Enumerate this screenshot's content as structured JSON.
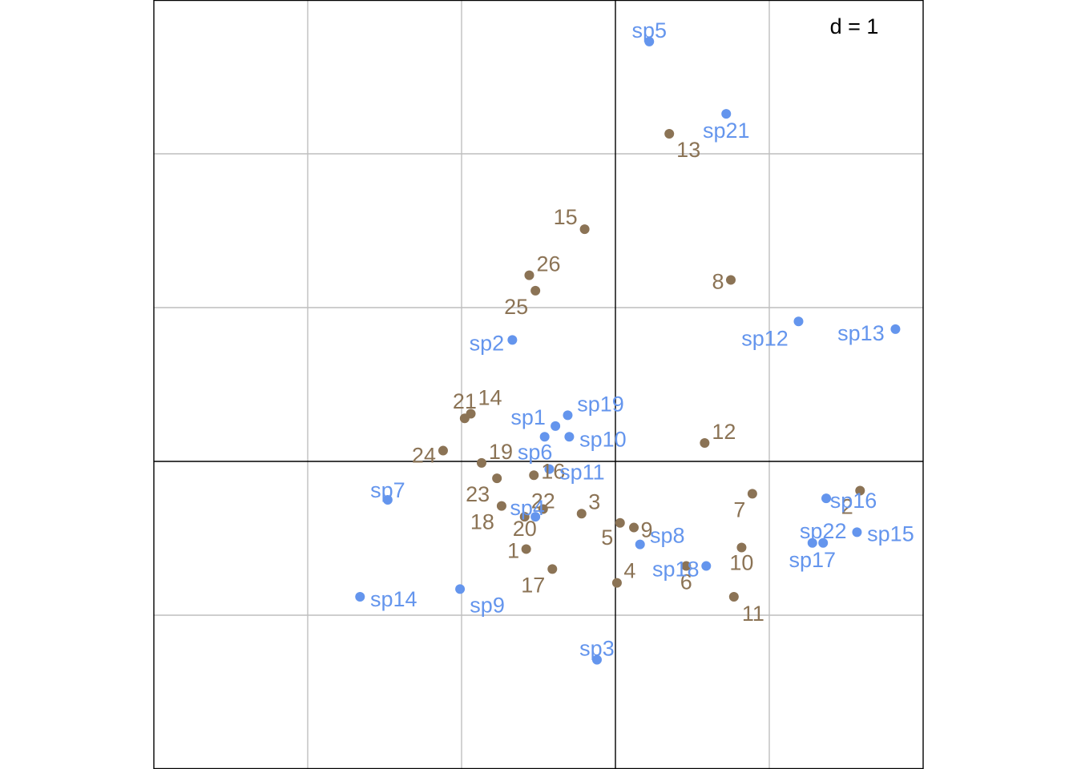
{
  "chart_data": {
    "type": "scatter",
    "scale_label": "d = 1",
    "grid": true,
    "xlim": [
      -3,
      2
    ],
    "ylim": [
      -2,
      3
    ],
    "colors": {
      "species": "#6495ED",
      "sites": "#8B7355",
      "grid": "#BEBEBE",
      "axes": "#000000"
    },
    "series": [
      {
        "name": "species",
        "points": [
          {
            "label": "sp1",
            "x": -0.39,
            "y": 0.23
          },
          {
            "label": "sp2",
            "x": -0.67,
            "y": 0.79
          },
          {
            "label": "sp3",
            "x": -0.12,
            "y": -1.29
          },
          {
            "label": "sp4",
            "x": -0.52,
            "y": -0.36
          },
          {
            "label": "sp5",
            "x": 0.22,
            "y": 2.73
          },
          {
            "label": "sp6",
            "x": -0.46,
            "y": 0.16
          },
          {
            "label": "sp7",
            "x": -1.48,
            "y": -0.25
          },
          {
            "label": "sp8",
            "x": 0.16,
            "y": -0.54
          },
          {
            "label": "sp9",
            "x": -1.01,
            "y": -0.83
          },
          {
            "label": "sp10",
            "x": -0.3,
            "y": 0.16
          },
          {
            "label": "sp11",
            "x": -0.43,
            "y": -0.05
          },
          {
            "label": "sp12",
            "x": 1.19,
            "y": 0.91
          },
          {
            "label": "sp13",
            "x": 1.82,
            "y": 0.86
          },
          {
            "label": "sp14",
            "x": -1.66,
            "y": -0.88
          },
          {
            "label": "sp15",
            "x": 1.57,
            "y": -0.46
          },
          {
            "label": "sp16",
            "x": 1.37,
            "y": -0.24
          },
          {
            "label": "sp17",
            "x": 1.28,
            "y": -0.53
          },
          {
            "label": "sp18",
            "x": 0.59,
            "y": -0.68
          },
          {
            "label": "sp19",
            "x": -0.31,
            "y": 0.3
          },
          {
            "label": "sp21",
            "x": 0.72,
            "y": 2.26
          },
          {
            "label": "sp22",
            "x": 1.35,
            "y": -0.53
          }
        ]
      },
      {
        "name": "sites",
        "points": [
          {
            "label": "1",
            "x": -0.58,
            "y": -0.57
          },
          {
            "label": "2",
            "x": 1.59,
            "y": -0.19
          },
          {
            "label": "3",
            "x": -0.22,
            "y": -0.34
          },
          {
            "label": "4",
            "x": 0.01,
            "y": -0.79
          },
          {
            "label": "5",
            "x": 0.03,
            "y": -0.4
          },
          {
            "label": "6",
            "x": 0.46,
            "y": -0.68
          },
          {
            "label": "7",
            "x": 0.89,
            "y": -0.21
          },
          {
            "label": "8",
            "x": 0.75,
            "y": 1.18
          },
          {
            "label": "9",
            "x": 0.12,
            "y": -0.43
          },
          {
            "label": "10",
            "x": 0.82,
            "y": -0.56
          },
          {
            "label": "11",
            "x": 0.77,
            "y": -0.88
          },
          {
            "label": "12",
            "x": 0.58,
            "y": 0.12
          },
          {
            "label": "13",
            "x": 0.35,
            "y": 2.13
          },
          {
            "label": "14",
            "x": -0.94,
            "y": 0.31
          },
          {
            "label": "15",
            "x": -0.2,
            "y": 1.51
          },
          {
            "label": "16",
            "x": -0.53,
            "y": -0.09
          },
          {
            "label": "17",
            "x": -0.41,
            "y": -0.7
          },
          {
            "label": "18",
            "x": -0.74,
            "y": -0.29
          },
          {
            "label": "19",
            "x": -0.87,
            "y": -0.01
          },
          {
            "label": "20",
            "x": -0.59,
            "y": -0.36
          },
          {
            "label": "21",
            "x": -0.98,
            "y": 0.28
          },
          {
            "label": "22",
            "x": -0.47,
            "y": -0.31
          },
          {
            "label": "23",
            "x": -0.77,
            "y": -0.11
          },
          {
            "label": "24",
            "x": -1.12,
            "y": 0.07
          },
          {
            "label": "25",
            "x": -0.52,
            "y": 1.11
          },
          {
            "label": "26",
            "x": -0.56,
            "y": 1.21
          }
        ]
      }
    ]
  }
}
